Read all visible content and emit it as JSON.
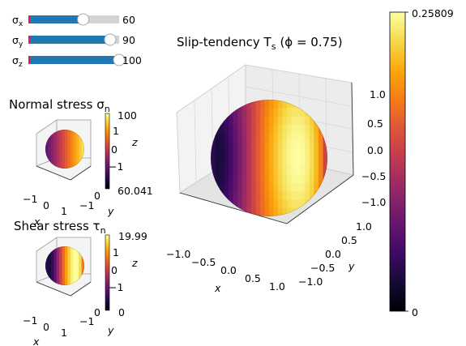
{
  "sliders": [
    {
      "label": "σ",
      "sub": "x",
      "value": 60,
      "value_label": "60",
      "min": 0,
      "max": 100
    },
    {
      "label": "σ",
      "sub": "y",
      "value": 90,
      "value_label": "90",
      "min": 0,
      "max": 100
    },
    {
      "label": "σ",
      "sub": "z",
      "value": 100,
      "value_label": "100",
      "min": 0,
      "max": 100
    }
  ],
  "colors": {
    "slider_fill": "#1f77b4",
    "slider_track": "#d3d3d3",
    "slider_start": "#e0204a",
    "pane": "#f2f2f2",
    "grid": "#d8d8d8"
  },
  "chart_data": [
    {
      "type": "surface",
      "title_main": "Normal stress σ",
      "title_sub": "n",
      "xlabel": "x",
      "ylabel": "y",
      "zlabel": "z",
      "xticks": [
        "−1",
        "0",
        "1"
      ],
      "yticks": [
        "−1",
        "0"
      ],
      "zticks": [
        "1",
        "0",
        "−1"
      ],
      "colorbar": {
        "min": 60.041,
        "max": 100,
        "min_label": "60.041",
        "max_label": "100",
        "colormap": "inferno"
      }
    },
    {
      "type": "surface",
      "title_main": "Shear stress τ",
      "title_sub": "n",
      "xlabel": "x",
      "ylabel": "y",
      "zlabel": "z",
      "xticks": [
        "−1",
        "0",
        "1"
      ],
      "yticks": [
        "−1",
        "0"
      ],
      "zticks": [
        "1",
        "0",
        "−1"
      ],
      "colorbar": {
        "min": 0,
        "max": 19.99,
        "min_label": "0",
        "max_label": "19.99",
        "colormap": "inferno"
      }
    },
    {
      "type": "surface",
      "title_main": "Slip-tendency T",
      "title_sub": "s",
      "title_rest": "(ϕ = 0.75)",
      "xlabel": "x",
      "ylabel": "y",
      "zlabel": "",
      "xticks": [
        "−1.0",
        "−0.5",
        "0.0",
        "0.5",
        "1.0"
      ],
      "yticks": [
        "−1.0",
        "−0.5",
        "0.0",
        "0.5",
        "1.0"
      ],
      "zticks": [
        "1.0",
        "0.5",
        "0.0",
        "−0.5",
        "−1.0"
      ],
      "colorbar": {
        "min": 0,
        "max": 0.25809,
        "min_label": "0",
        "max_label": "0.25809",
        "colormap": "inferno"
      }
    }
  ]
}
